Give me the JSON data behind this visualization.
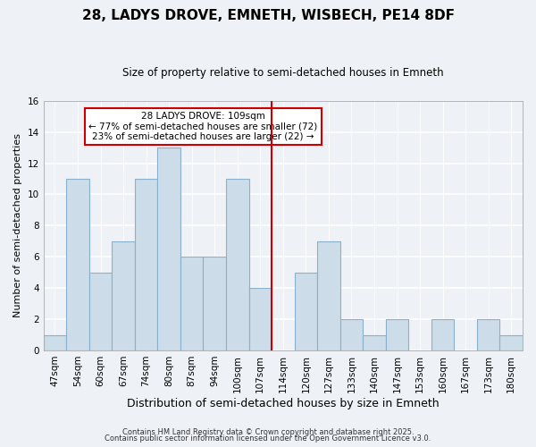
{
  "title": "28, LADYS DROVE, EMNETH, WISBECH, PE14 8DF",
  "subtitle": "Size of property relative to semi-detached houses in Emneth",
  "xlabel": "Distribution of semi-detached houses by size in Emneth",
  "ylabel": "Number of semi-detached properties",
  "bar_labels": [
    "47sqm",
    "54sqm",
    "60sqm",
    "67sqm",
    "74sqm",
    "80sqm",
    "87sqm",
    "94sqm",
    "100sqm",
    "107sqm",
    "114sqm",
    "120sqm",
    "127sqm",
    "133sqm",
    "140sqm",
    "147sqm",
    "153sqm",
    "160sqm",
    "167sqm",
    "173sqm",
    "180sqm"
  ],
  "bar_heights": [
    1,
    11,
    5,
    7,
    11,
    13,
    6,
    6,
    11,
    4,
    0,
    5,
    7,
    2,
    1,
    2,
    0,
    2,
    0,
    2,
    1
  ],
  "bar_color": "#ccdce8",
  "bar_edgecolor": "#8ab0cc",
  "vline_x": 9.5,
  "vline_color": "#cc0000",
  "annotation_title": "28 LADYS DROVE: 109sqm",
  "annotation_line1": "← 77% of semi-detached houses are smaller (72)",
  "annotation_line2": "23% of semi-detached houses are larger (22) →",
  "annotation_box_edgecolor": "#cc0000",
  "annotation_box_facecolor": "#ffffff",
  "ylim": [
    0,
    16
  ],
  "yticks": [
    0,
    2,
    4,
    6,
    8,
    10,
    12,
    14,
    16
  ],
  "background_color": "#eef2f7",
  "grid_color": "#ffffff",
  "footnote1": "Contains HM Land Registry data © Crown copyright and database right 2025.",
  "footnote2": "Contains public sector information licensed under the Open Government Licence v3.0.",
  "title_fontsize": 11,
  "subtitle_fontsize": 8.5,
  "xlabel_fontsize": 9,
  "ylabel_fontsize": 8,
  "tick_fontsize": 7.5,
  "annotation_fontsize": 7.5,
  "footnote_fontsize": 6
}
